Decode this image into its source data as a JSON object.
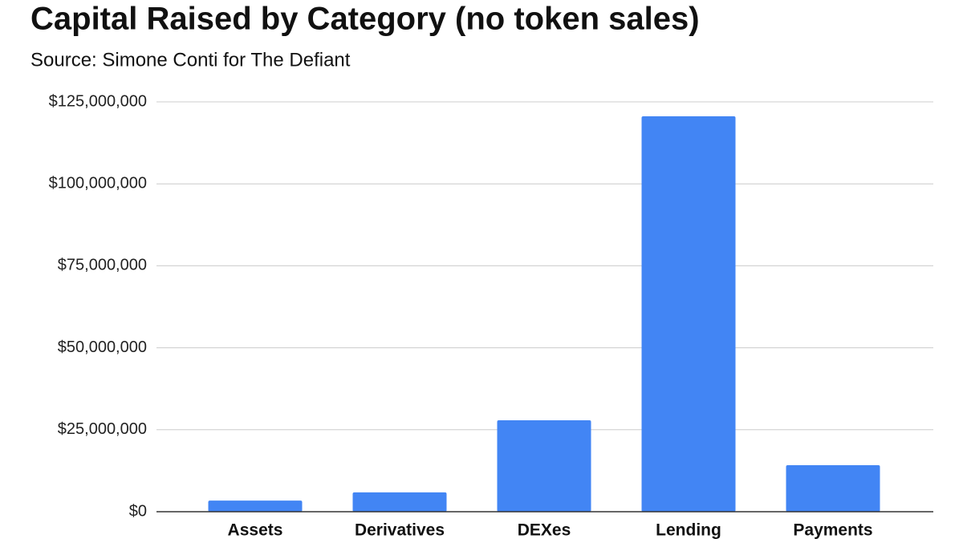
{
  "chart_data": {
    "type": "bar",
    "title": "Capital Raised by Category (no token sales)",
    "subtitle": "Source: Simone Conti for The Defiant",
    "categories": [
      "Assets",
      "Derivatives",
      "DEXes",
      "Lending",
      "Payments"
    ],
    "values": [
      3400000,
      5900000,
      27900000,
      120600000,
      14200000
    ],
    "color": "#4285f4",
    "ylim": [
      0,
      125000000
    ],
    "yticks": [
      {
        "value": 0,
        "label": "$0"
      },
      {
        "value": 25000000,
        "label": "$25,000,000"
      },
      {
        "value": 50000000,
        "label": "$50,000,000"
      },
      {
        "value": 75000000,
        "label": "$75,000,000"
      },
      {
        "value": 100000000,
        "label": "$100,000,000"
      },
      {
        "value": 125000000,
        "label": "$125,000,000"
      }
    ],
    "grid": true
  }
}
